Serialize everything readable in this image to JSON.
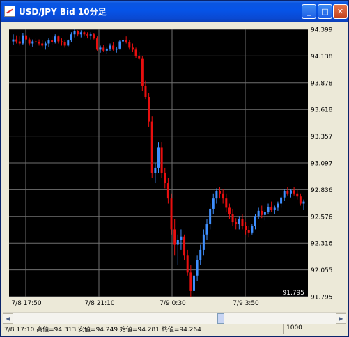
{
  "window": {
    "title": "USD/JPY Bid 10分足"
  },
  "status": {
    "ohlc": "7/8 17:10 高値=94.313 安値=94.249 始値=94.281 終値=94.264",
    "count": "1000"
  },
  "colors": {
    "up": "#3f8fff",
    "down": "#e80f0f",
    "background": "#000000",
    "grid": "#707070"
  },
  "chart_data": {
    "type": "candlestick",
    "title": "USD/JPY Bid 10分足",
    "y_ticks": [
      "94.399",
      "94.138",
      "93.878",
      "93.618",
      "93.357",
      "93.097",
      "92.836",
      "92.576",
      "92.316",
      "92.055",
      "91.795"
    ],
    "ylim": [
      91.795,
      94.399
    ],
    "x_ticks": [
      "7/8 17:50",
      "7/8 21:10",
      "7/9 0:30",
      "7/9 3:50"
    ],
    "corner_label": "91.795",
    "grid": true,
    "candles": [
      [
        94.28,
        94.35,
        94.25,
        94.3
      ],
      [
        94.3,
        94.34,
        94.26,
        94.28
      ],
      [
        94.28,
        94.33,
        94.24,
        94.26
      ],
      [
        94.26,
        94.36,
        94.25,
        94.34
      ],
      [
        94.34,
        94.38,
        94.28,
        94.3
      ],
      [
        94.3,
        94.32,
        94.24,
        94.26
      ],
      [
        94.26,
        94.3,
        94.23,
        94.28
      ],
      [
        94.28,
        94.31,
        94.25,
        94.27
      ],
      [
        94.27,
        94.3,
        94.24,
        94.26
      ],
      [
        94.26,
        94.29,
        94.22,
        94.24
      ],
      [
        94.24,
        94.28,
        94.2,
        94.26
      ],
      [
        94.26,
        94.31,
        94.23,
        94.29
      ],
      [
        94.29,
        94.33,
        94.25,
        94.27
      ],
      [
        94.27,
        94.35,
        94.26,
        94.33
      ],
      [
        94.33,
        94.34,
        94.26,
        94.28
      ],
      [
        94.28,
        94.31,
        94.24,
        94.27
      ],
      [
        94.27,
        94.29,
        94.22,
        94.24
      ],
      [
        94.24,
        94.3,
        94.23,
        94.29
      ],
      [
        94.29,
        94.37,
        94.27,
        94.35
      ],
      [
        94.35,
        94.4,
        94.32,
        94.38
      ],
      [
        94.38,
        94.39,
        94.33,
        94.35
      ],
      [
        94.35,
        94.39,
        94.32,
        94.37
      ],
      [
        94.37,
        94.38,
        94.33,
        94.35
      ],
      [
        94.35,
        94.37,
        94.31,
        94.34
      ],
      [
        94.34,
        94.37,
        94.3,
        94.35
      ],
      [
        94.35,
        94.36,
        94.3,
        94.31
      ],
      [
        94.31,
        94.33,
        94.19,
        94.2
      ],
      [
        94.2,
        94.24,
        94.17,
        94.22
      ],
      [
        94.22,
        94.25,
        94.18,
        94.19
      ],
      [
        94.19,
        94.23,
        94.16,
        94.21
      ],
      [
        94.21,
        94.26,
        94.19,
        94.24
      ],
      [
        94.24,
        94.27,
        94.19,
        94.2
      ],
      [
        94.2,
        94.23,
        94.17,
        94.21
      ],
      [
        94.21,
        94.29,
        94.2,
        94.28
      ],
      [
        94.28,
        94.31,
        94.24,
        94.29
      ],
      [
        94.29,
        94.33,
        94.26,
        94.27
      ],
      [
        94.27,
        94.29,
        94.2,
        94.22
      ],
      [
        94.22,
        94.26,
        94.18,
        94.2
      ],
      [
        94.2,
        94.22,
        94.12,
        94.14
      ],
      [
        94.14,
        94.18,
        94.1,
        94.11
      ],
      [
        94.11,
        94.14,
        93.8,
        93.85
      ],
      [
        93.85,
        93.9,
        93.72,
        93.74
      ],
      [
        93.74,
        93.78,
        93.45,
        93.5
      ],
      [
        93.5,
        93.55,
        92.95,
        93.0
      ],
      [
        93.0,
        93.1,
        92.9,
        93.05
      ],
      [
        93.05,
        93.3,
        93.0,
        93.25
      ],
      [
        93.25,
        93.3,
        92.95,
        93.0
      ],
      [
        93.0,
        93.05,
        92.85,
        92.9
      ],
      [
        92.9,
        92.95,
        92.7,
        92.75
      ],
      [
        92.75,
        92.8,
        92.4,
        92.45
      ],
      [
        92.45,
        92.55,
        92.2,
        92.3
      ],
      [
        92.3,
        92.4,
        92.1,
        92.35
      ],
      [
        92.35,
        92.45,
        92.25,
        92.38
      ],
      [
        92.38,
        92.4,
        92.15,
        92.2
      ],
      [
        92.2,
        92.25,
        92.0,
        92.03
      ],
      [
        92.03,
        92.1,
        91.79,
        91.85
      ],
      [
        91.85,
        92.05,
        91.8,
        92.0
      ],
      [
        92.0,
        92.2,
        91.95,
        92.15
      ],
      [
        92.15,
        92.3,
        92.1,
        92.25
      ],
      [
        92.25,
        92.45,
        92.2,
        92.4
      ],
      [
        92.4,
        92.55,
        92.35,
        92.5
      ],
      [
        92.5,
        92.7,
        92.45,
        92.65
      ],
      [
        92.65,
        92.8,
        92.6,
        92.75
      ],
      [
        92.75,
        92.85,
        92.7,
        92.82
      ],
      [
        92.82,
        92.86,
        92.75,
        92.8
      ],
      [
        92.8,
        92.84,
        92.7,
        92.75
      ],
      [
        92.75,
        92.8,
        92.62,
        92.66
      ],
      [
        92.66,
        92.7,
        92.55,
        92.6
      ],
      [
        92.6,
        92.65,
        92.48,
        92.52
      ],
      [
        92.52,
        92.56,
        92.45,
        92.5
      ],
      [
        92.5,
        92.58,
        92.45,
        92.55
      ],
      [
        92.55,
        92.6,
        92.45,
        92.48
      ],
      [
        92.48,
        92.52,
        92.4,
        92.44
      ],
      [
        92.44,
        92.48,
        92.37,
        92.42
      ],
      [
        92.42,
        92.5,
        92.4,
        92.48
      ],
      [
        92.48,
        92.6,
        92.45,
        92.58
      ],
      [
        92.58,
        92.66,
        92.55,
        92.63
      ],
      [
        92.63,
        92.68,
        92.56,
        92.59
      ],
      [
        92.59,
        92.64,
        92.54,
        92.62
      ],
      [
        92.62,
        92.7,
        92.6,
        92.67
      ],
      [
        92.67,
        92.72,
        92.62,
        92.64
      ],
      [
        92.64,
        92.68,
        92.6,
        92.66
      ],
      [
        92.66,
        92.72,
        92.63,
        92.7
      ],
      [
        92.7,
        92.78,
        92.66,
        92.76
      ],
      [
        92.76,
        92.84,
        92.73,
        92.82
      ],
      [
        92.82,
        92.86,
        92.78,
        92.8
      ],
      [
        92.8,
        92.84,
        92.76,
        92.83
      ],
      [
        92.83,
        92.86,
        92.78,
        92.8
      ],
      [
        92.8,
        92.84,
        92.74,
        92.77
      ],
      [
        92.77,
        92.8,
        92.68,
        92.7
      ],
      [
        92.7,
        92.74,
        92.64,
        92.72
      ]
    ]
  }
}
